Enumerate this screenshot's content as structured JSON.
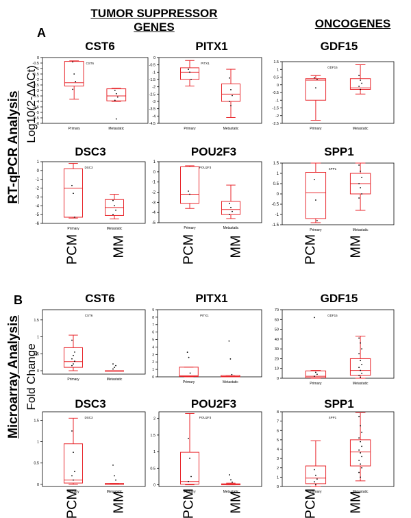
{
  "header": {
    "suppressor_line1": "TUMOR SUPPRESSOR",
    "suppressor_line2": "GENES",
    "oncogenes": "ONCOGENES"
  },
  "sections": {
    "A": {
      "label": "A",
      "ylabel_main": "RT-qPCR Analysis",
      "ylabel_sub": "Log10(2-ΔΔCt)"
    },
    "B": {
      "label": "B",
      "ylabel_main": "Microarray Analysis",
      "ylabel_sub": "Fold Change"
    }
  },
  "bottom_categories": {
    "A": [
      "PCM",
      "MM",
      "PCM",
      "MM",
      "PCM",
      "MM"
    ],
    "B": [
      "PCM",
      "MM",
      "PCM",
      "MM",
      "PCM",
      "MM"
    ]
  },
  "colors": {
    "box": "#e8262b",
    "axis": "#000000",
    "dot": "#000000"
  },
  "chart_data": [
    {
      "type": "box",
      "id": "A-CST6",
      "title": "CST6",
      "inner_title": "CST6",
      "categories": [
        "Primary",
        "Metastatic"
      ],
      "yticks": [
        0,
        -0.5,
        -1,
        -1.5,
        -2,
        -2.5,
        -3,
        -3.5,
        -4,
        -4.5,
        -5,
        -5.5,
        -6
      ],
      "ylim": [
        -6,
        0
      ],
      "boxes": [
        {
          "whisker_low": -3.8,
          "q1": -2.6,
          "median": -2.3,
          "q3": -0.35,
          "whisker_high": -0.3,
          "points": [
            -0.4,
            -1.5,
            -2.2,
            -2.9
          ]
        },
        {
          "whisker_low": -4.0,
          "q1": -3.95,
          "median": -3.5,
          "q3": -2.85,
          "whisker_high": -2.8,
          "points": [
            -3.0,
            -3.3,
            -3.6,
            -3.9,
            -5.6
          ]
        }
      ]
    },
    {
      "type": "box",
      "id": "A-PITX1",
      "title": "PITX1",
      "inner_title": "PITX1",
      "categories": [
        "Primary",
        "Metastatic"
      ],
      "yticks": [
        0,
        -0.5,
        -1,
        -1.5,
        -2,
        -2.5,
        -3,
        -3.5,
        -4,
        -4.5
      ],
      "ylim": [
        -4.5,
        0
      ],
      "boxes": [
        {
          "whisker_low": -1.95,
          "q1": -1.5,
          "median": -1.0,
          "q3": -0.7,
          "whisker_high": -0.2,
          "points": [
            -0.8,
            -1.0,
            -1.5
          ]
        },
        {
          "whisker_low": -4.1,
          "q1": -3.0,
          "median": -2.5,
          "q3": -1.8,
          "whisker_high": -0.8,
          "points": [
            -1.4,
            -2.2,
            -2.6,
            -3.0,
            -3.3
          ]
        }
      ]
    },
    {
      "type": "box",
      "id": "A-GDF15",
      "title": "GDF15",
      "inner_title": "GDF15",
      "categories": [
        "Primary",
        "Metastatic"
      ],
      "yticks": [
        1.5,
        1,
        0.5,
        0,
        -0.5,
        -1,
        -1.5,
        -2,
        -2.5
      ],
      "ylim": [
        -2.5,
        1.5
      ],
      "boxes": [
        {
          "whisker_low": -2.3,
          "q1": -1.0,
          "median": 0.3,
          "q3": 0.4,
          "whisker_high": 0.6,
          "points": [
            0.45,
            -0.2,
            0.35
          ]
        },
        {
          "whisker_low": -0.6,
          "q1": -0.3,
          "median": -0.2,
          "q3": 0.4,
          "whisker_high": 1.3,
          "points": [
            0.6,
            0.3,
            0.1,
            -0.1,
            -0.3
          ]
        }
      ]
    },
    {
      "type": "box",
      "id": "A-DSC3",
      "title": "DSC3",
      "inner_title": "DSC3",
      "categories": [
        "Primary",
        "Metastatic"
      ],
      "yticks": [
        1,
        0,
        -1,
        -2,
        -3,
        -4,
        -5,
        -6
      ],
      "ylim": [
        -6,
        1
      ],
      "boxes": [
        {
          "whisker_low": -5.4,
          "q1": -5.3,
          "median": -2.0,
          "q3": 0.2,
          "whisker_high": 0.8,
          "points": [
            -1.7,
            -2.6,
            -5.3
          ]
        },
        {
          "whisker_low": -5.5,
          "q1": -5.1,
          "median": -4.2,
          "q3": -3.3,
          "whisker_high": -2.7,
          "points": [
            -3.4,
            -4.0,
            -4.5,
            -5.0
          ]
        }
      ]
    },
    {
      "type": "box",
      "id": "A-POU2F3",
      "title": "POU2F3",
      "inner_title": "POU2F3",
      "categories": [
        "Primary",
        "Metastatic"
      ],
      "yticks": [
        1,
        0,
        -1,
        -2,
        -3,
        -4,
        -5
      ],
      "ylim": [
        -5,
        1
      ],
      "boxes": [
        {
          "whisker_low": -3.6,
          "q1": -3.1,
          "median": -2.2,
          "q3": 0.5,
          "whisker_high": 0.6,
          "points": [
            -1.9,
            -2.2
          ]
        },
        {
          "whisker_low": -4.6,
          "q1": -4.2,
          "median": -3.7,
          "q3": -2.9,
          "whisker_high": -1.3,
          "points": [
            -3.1,
            -3.5,
            -3.9,
            -4.2
          ]
        }
      ]
    },
    {
      "type": "box",
      "id": "A-SPP1",
      "title": "SPP1",
      "inner_title": "SPP1",
      "categories": [
        "Primary",
        "Metastatic"
      ],
      "yticks": [
        1.5,
        1,
        0.5,
        0,
        -0.5,
        -1,
        -1.5
      ],
      "ylim": [
        -1.5,
        1.5
      ],
      "boxes": [
        {
          "whisker_low": -1.4,
          "q1": -1.2,
          "median": 0.05,
          "q3": 1.05,
          "whisker_high": 1.5,
          "points": [
            0.7,
            -0.3,
            -1.3
          ]
        },
        {
          "whisker_low": -0.8,
          "q1": 0.0,
          "median": 0.5,
          "q3": 1.0,
          "whisker_high": 1.5,
          "points": [
            1.4,
            1.1,
            0.8,
            0.5,
            0.3,
            0.0,
            -0.2
          ]
        }
      ]
    },
    {
      "type": "box",
      "id": "B-CST6",
      "title": "CST6",
      "inner_title": "CST6",
      "categories": [
        "Primary",
        "Metastatic"
      ],
      "yticks": [
        1.5,
        1,
        0.5,
        0
      ],
      "ylim": [
        -0.1,
        1.8
      ],
      "boxes": [
        {
          "whisker_low": 0.0,
          "q1": 0.1,
          "median": 0.27,
          "q3": 0.68,
          "whisker_high": 1.05,
          "points": [
            0.15,
            0.2,
            0.28,
            0.35,
            0.45,
            0.55,
            0.9
          ]
        },
        {
          "whisker_low": 0.0,
          "q1": 0.0,
          "median": 0.0,
          "q3": 0.0,
          "whisker_high": 0.0,
          "points": [
            0.05,
            0.1,
            0.15,
            0.2
          ]
        }
      ]
    },
    {
      "type": "box",
      "id": "B-PITX1",
      "title": "PITX1",
      "inner_title": "PITX1",
      "categories": [
        "Primary",
        "Metastatic"
      ],
      "yticks": [
        9,
        8,
        7,
        6,
        5,
        4,
        3,
        2,
        1,
        0
      ],
      "ylim": [
        0,
        9
      ],
      "boxes": [
        {
          "whisker_low": 0.0,
          "q1": 0.05,
          "median": 0.15,
          "q3": 1.3,
          "whisker_high": 1.3,
          "points": [
            3.3,
            2.6,
            0.5
          ]
        },
        {
          "whisker_low": 0.0,
          "q1": 0.0,
          "median": 0.05,
          "q3": 0.2,
          "whisker_high": 0.2,
          "points": [
            4.8,
            2.4,
            0.3
          ]
        }
      ]
    },
    {
      "type": "box",
      "id": "B-GDF15",
      "title": "GDF15",
      "inner_title": "GDF15",
      "categories": [
        "Primary",
        "Metastatic"
      ],
      "yticks": [
        70,
        60,
        50,
        40,
        30,
        20,
        10,
        0
      ],
      "ylim": [
        0,
        70
      ],
      "boxes": [
        {
          "whisker_low": 0.0,
          "q1": 0.5,
          "median": 2.0,
          "q3": 7.5,
          "whisker_high": 8.0,
          "points": [
            62,
            6,
            4,
            2
          ]
        },
        {
          "whisker_low": 0.0,
          "q1": 3.0,
          "median": 8.0,
          "q3": 20.0,
          "whisker_high": 43.0,
          "points": [
            41,
            36,
            30,
            25,
            18,
            14,
            11,
            8,
            5,
            3,
            1
          ]
        }
      ]
    },
    {
      "type": "box",
      "id": "B-DSC3",
      "title": "DSC3",
      "inner_title": "DSC3",
      "categories": [
        "Primary",
        "Metastatic"
      ],
      "yticks": [
        1.5,
        1,
        0.5,
        0
      ],
      "ylim": [
        -0.05,
        1.7
      ],
      "boxes": [
        {
          "whisker_low": 0.0,
          "q1": 0.03,
          "median": 0.1,
          "q3": 0.95,
          "whisker_high": 1.55,
          "points": [
            1.25,
            0.75,
            0.3,
            0.2,
            0.1
          ]
        },
        {
          "whisker_low": 0.0,
          "q1": 0.0,
          "median": 0.0,
          "q3": 0.02,
          "whisker_high": 0.02,
          "points": [
            0.45,
            0.2,
            0.1
          ]
        }
      ]
    },
    {
      "type": "box",
      "id": "B-POU2F3",
      "title": "POU2F3",
      "inner_title": "POU2F3",
      "categories": [
        "Primary",
        "Metastatic"
      ],
      "yticks": [
        2,
        1.5,
        1,
        0.5,
        0
      ],
      "ylim": [
        -0.05,
        2.2
      ],
      "boxes": [
        {
          "whisker_low": 0.0,
          "q1": 0.02,
          "median": 0.1,
          "q3": 0.98,
          "whisker_high": 2.15,
          "points": [
            1.4,
            0.8,
            0.25,
            0.1
          ]
        },
        {
          "whisker_low": 0.0,
          "q1": 0.0,
          "median": 0.01,
          "q3": 0.03,
          "whisker_high": 0.05,
          "points": [
            0.3,
            0.15,
            0.08
          ]
        }
      ]
    },
    {
      "type": "box",
      "id": "B-SPP1",
      "title": "SPP1",
      "inner_title": "SPP1",
      "categories": [
        "Primary",
        "Metastatic"
      ],
      "yticks": [
        8,
        7,
        6,
        5,
        4,
        3,
        2,
        1,
        0
      ],
      "ylim": [
        0,
        8
      ],
      "boxes": [
        {
          "whisker_low": 0.0,
          "q1": 0.3,
          "median": 0.9,
          "q3": 2.2,
          "whisker_high": 4.9,
          "points": [
            1.8,
            1.2,
            0.8,
            0.5,
            0.2
          ]
        },
        {
          "whisker_low": 0.6,
          "q1": 2.2,
          "median": 3.7,
          "q3": 5.0,
          "whisker_high": 7.9,
          "points": [
            7.5,
            6.5,
            5.8,
            5.2,
            4.8,
            4.3,
            3.9,
            3.6,
            3.2,
            2.8,
            2.4,
            2.0,
            1.5,
            1.0
          ]
        }
      ]
    }
  ]
}
